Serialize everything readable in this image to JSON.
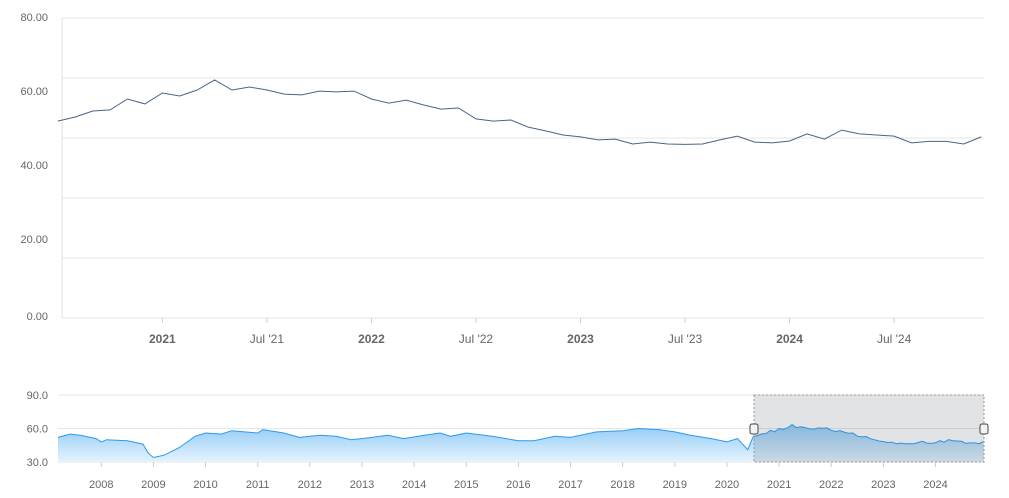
{
  "chart_data": [
    {
      "type": "line",
      "role": "main",
      "ylim": [
        0,
        80
      ],
      "y_tick_labels": [
        "80.00",
        "60.00",
        "40.00",
        "20.00",
        "0.00"
      ],
      "x_tick_labels": [
        {
          "label": "2021",
          "t": 2021.0,
          "bold": true
        },
        {
          "label": "Jul '21",
          "t": 2021.5,
          "bold": false
        },
        {
          "label": "2022",
          "t": 2022.0,
          "bold": true
        },
        {
          "label": "Jul '22",
          "t": 2022.5,
          "bold": false
        },
        {
          "label": "2023",
          "t": 2023.0,
          "bold": true
        },
        {
          "label": "Jul '23",
          "t": 2023.5,
          "bold": false
        },
        {
          "label": "2024",
          "t": 2024.0,
          "bold": true
        },
        {
          "label": "Jul '24",
          "t": 2024.5,
          "bold": false
        }
      ],
      "xlim": [
        2020.52,
        2024.93
      ],
      "grid": true,
      "series_color": "#4a6488",
      "x_start": "2020-07",
      "x_step": "month",
      "values": [
        52.5,
        53.6,
        55.2,
        55.5,
        58.4,
        57.1,
        60.0,
        59.2,
        60.8,
        63.5,
        60.8,
        61.6,
        60.8,
        59.7,
        59.5,
        60.5,
        60.3,
        60.5,
        58.4,
        57.3,
        58.1,
        56.8,
        55.7,
        56.0,
        53.1,
        52.5,
        52.8,
        50.9,
        49.9,
        48.8,
        48.3,
        47.5,
        47.7,
        46.4,
        46.9,
        46.4,
        46.3,
        46.4,
        47.5,
        48.5,
        46.9,
        46.7,
        47.2,
        49.1,
        47.7,
        50.1,
        49.1,
        48.8,
        48.5,
        46.7,
        47.1,
        47.1,
        46.4,
        48.3
      ]
    },
    {
      "type": "area",
      "role": "navigator",
      "ylim": [
        30,
        90
      ],
      "y_tick_labels": [
        "90.0",
        "60.0",
        "30.0"
      ],
      "x_tick_labels": [
        "2008",
        "2009",
        "2010",
        "2011",
        "2012",
        "2013",
        "2014",
        "2015",
        "2016",
        "2017",
        "2018",
        "2019",
        "2020",
        "2021",
        "2022",
        "2023",
        "2024"
      ],
      "xlim": [
        2007.17,
        2024.93
      ],
      "series_color": "#2a9af0",
      "selected_range": [
        "2020-07",
        "2024-12"
      ],
      "x": [
        2007.17,
        2007.4,
        2007.6,
        2007.9,
        2008.0,
        2008.1,
        2008.5,
        2008.8,
        2008.9,
        2009.0,
        2009.2,
        2009.5,
        2009.8,
        2010.0,
        2010.3,
        2010.5,
        2011.0,
        2011.1,
        2011.5,
        2011.8,
        2012.2,
        2012.5,
        2012.8,
        2013.2,
        2013.5,
        2013.8,
        2014.2,
        2014.5,
        2014.7,
        2015.0,
        2015.5,
        2016.0,
        2016.3,
        2016.7,
        2017.0,
        2017.5,
        2018.0,
        2018.3,
        2018.7,
        2019.0,
        2019.3,
        2019.7,
        2020.0,
        2020.2,
        2020.4
      ],
      "values": [
        52,
        55,
        54,
        51,
        48,
        50,
        49,
        46,
        38,
        34,
        36,
        43,
        53,
        56,
        55,
        58,
        56,
        59,
        56,
        52,
        54,
        53,
        50,
        52,
        54,
        51,
        54,
        56,
        53,
        56,
        53,
        49,
        49,
        53,
        52,
        57,
        58,
        60,
        59,
        57,
        54,
        51,
        48,
        51,
        41
      ]
    }
  ]
}
